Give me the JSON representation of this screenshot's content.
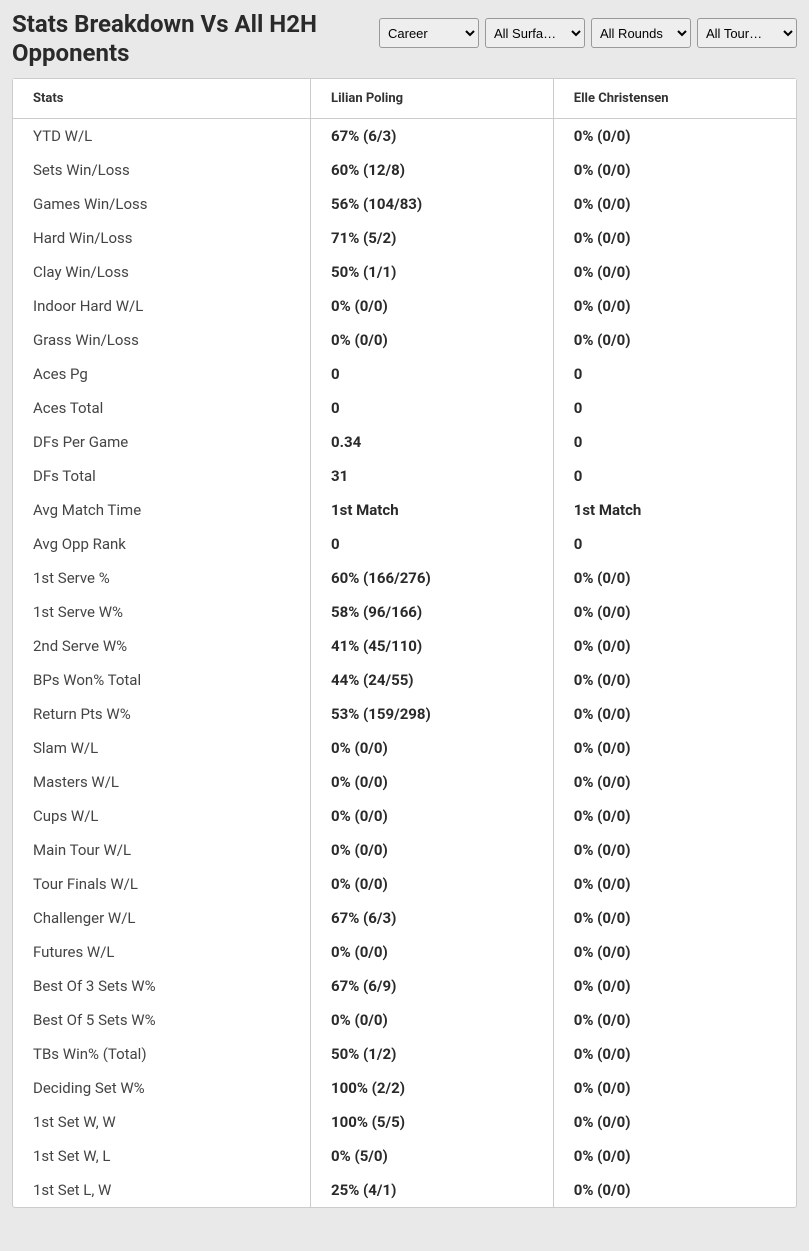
{
  "title": "Stats Breakdown Vs All H2H Opponents",
  "filters": {
    "period": {
      "selected": "Career",
      "options": [
        "Career"
      ]
    },
    "surface": {
      "selected": "All Surfa…",
      "options": [
        "All Surfa…"
      ]
    },
    "round": {
      "selected": "All Rounds",
      "options": [
        "All Rounds"
      ]
    },
    "tour": {
      "selected": "All Tour…",
      "options": [
        "All Tour…"
      ]
    }
  },
  "columns": {
    "stats": "Stats",
    "player1": "Lilian Poling",
    "player2": "Elle Christensen"
  },
  "rows": [
    {
      "label": "YTD W/L",
      "p1": "67% (6/3)",
      "p2": "0% (0/0)"
    },
    {
      "label": "Sets Win/Loss",
      "p1": "60% (12/8)",
      "p2": "0% (0/0)"
    },
    {
      "label": "Games Win/Loss",
      "p1": "56% (104/83)",
      "p2": "0% (0/0)"
    },
    {
      "label": "Hard Win/Loss",
      "p1": "71% (5/2)",
      "p2": "0% (0/0)"
    },
    {
      "label": "Clay Win/Loss",
      "p1": "50% (1/1)",
      "p2": "0% (0/0)"
    },
    {
      "label": "Indoor Hard W/L",
      "p1": "0% (0/0)",
      "p2": "0% (0/0)"
    },
    {
      "label": "Grass Win/Loss",
      "p1": "0% (0/0)",
      "p2": "0% (0/0)"
    },
    {
      "label": "Aces Pg",
      "p1": "0",
      "p2": "0"
    },
    {
      "label": "Aces Total",
      "p1": "0",
      "p2": "0"
    },
    {
      "label": "DFs Per Game",
      "p1": "0.34",
      "p2": "0"
    },
    {
      "label": "DFs Total",
      "p1": "31",
      "p2": "0"
    },
    {
      "label": "Avg Match Time",
      "p1": "1st Match",
      "p2": "1st Match"
    },
    {
      "label": "Avg Opp Rank",
      "p1": "0",
      "p2": "0"
    },
    {
      "label": "1st Serve %",
      "p1": "60% (166/276)",
      "p2": "0% (0/0)"
    },
    {
      "label": "1st Serve W%",
      "p1": "58% (96/166)",
      "p2": "0% (0/0)"
    },
    {
      "label": "2nd Serve W%",
      "p1": "41% (45/110)",
      "p2": "0% (0/0)"
    },
    {
      "label": "BPs Won% Total",
      "p1": "44% (24/55)",
      "p2": "0% (0/0)"
    },
    {
      "label": "Return Pts W%",
      "p1": "53% (159/298)",
      "p2": "0% (0/0)"
    },
    {
      "label": "Slam W/L",
      "p1": "0% (0/0)",
      "p2": "0% (0/0)"
    },
    {
      "label": "Masters W/L",
      "p1": "0% (0/0)",
      "p2": "0% (0/0)"
    },
    {
      "label": "Cups W/L",
      "p1": "0% (0/0)",
      "p2": "0% (0/0)"
    },
    {
      "label": "Main Tour W/L",
      "p1": "0% (0/0)",
      "p2": "0% (0/0)"
    },
    {
      "label": "Tour Finals W/L",
      "p1": "0% (0/0)",
      "p2": "0% (0/0)"
    },
    {
      "label": "Challenger W/L",
      "p1": "67% (6/3)",
      "p2": "0% (0/0)"
    },
    {
      "label": "Futures W/L",
      "p1": "0% (0/0)",
      "p2": "0% (0/0)"
    },
    {
      "label": "Best Of 3 Sets W%",
      "p1": "67% (6/9)",
      "p2": "0% (0/0)"
    },
    {
      "label": "Best Of 5 Sets W%",
      "p1": "0% (0/0)",
      "p2": "0% (0/0)"
    },
    {
      "label": "TBs Win% (Total)",
      "p1": "50% (1/2)",
      "p2": "0% (0/0)"
    },
    {
      "label": "Deciding Set W%",
      "p1": "100% (2/2)",
      "p2": "0% (0/0)"
    },
    {
      "label": "1st Set W, W",
      "p1": "100% (5/5)",
      "p2": "0% (0/0)"
    },
    {
      "label": "1st Set W, L",
      "p1": "0% (5/0)",
      "p2": "0% (0/0)"
    },
    {
      "label": "1st Set L, W",
      "p1": "25% (4/1)",
      "p2": "0% (0/0)"
    }
  ]
}
